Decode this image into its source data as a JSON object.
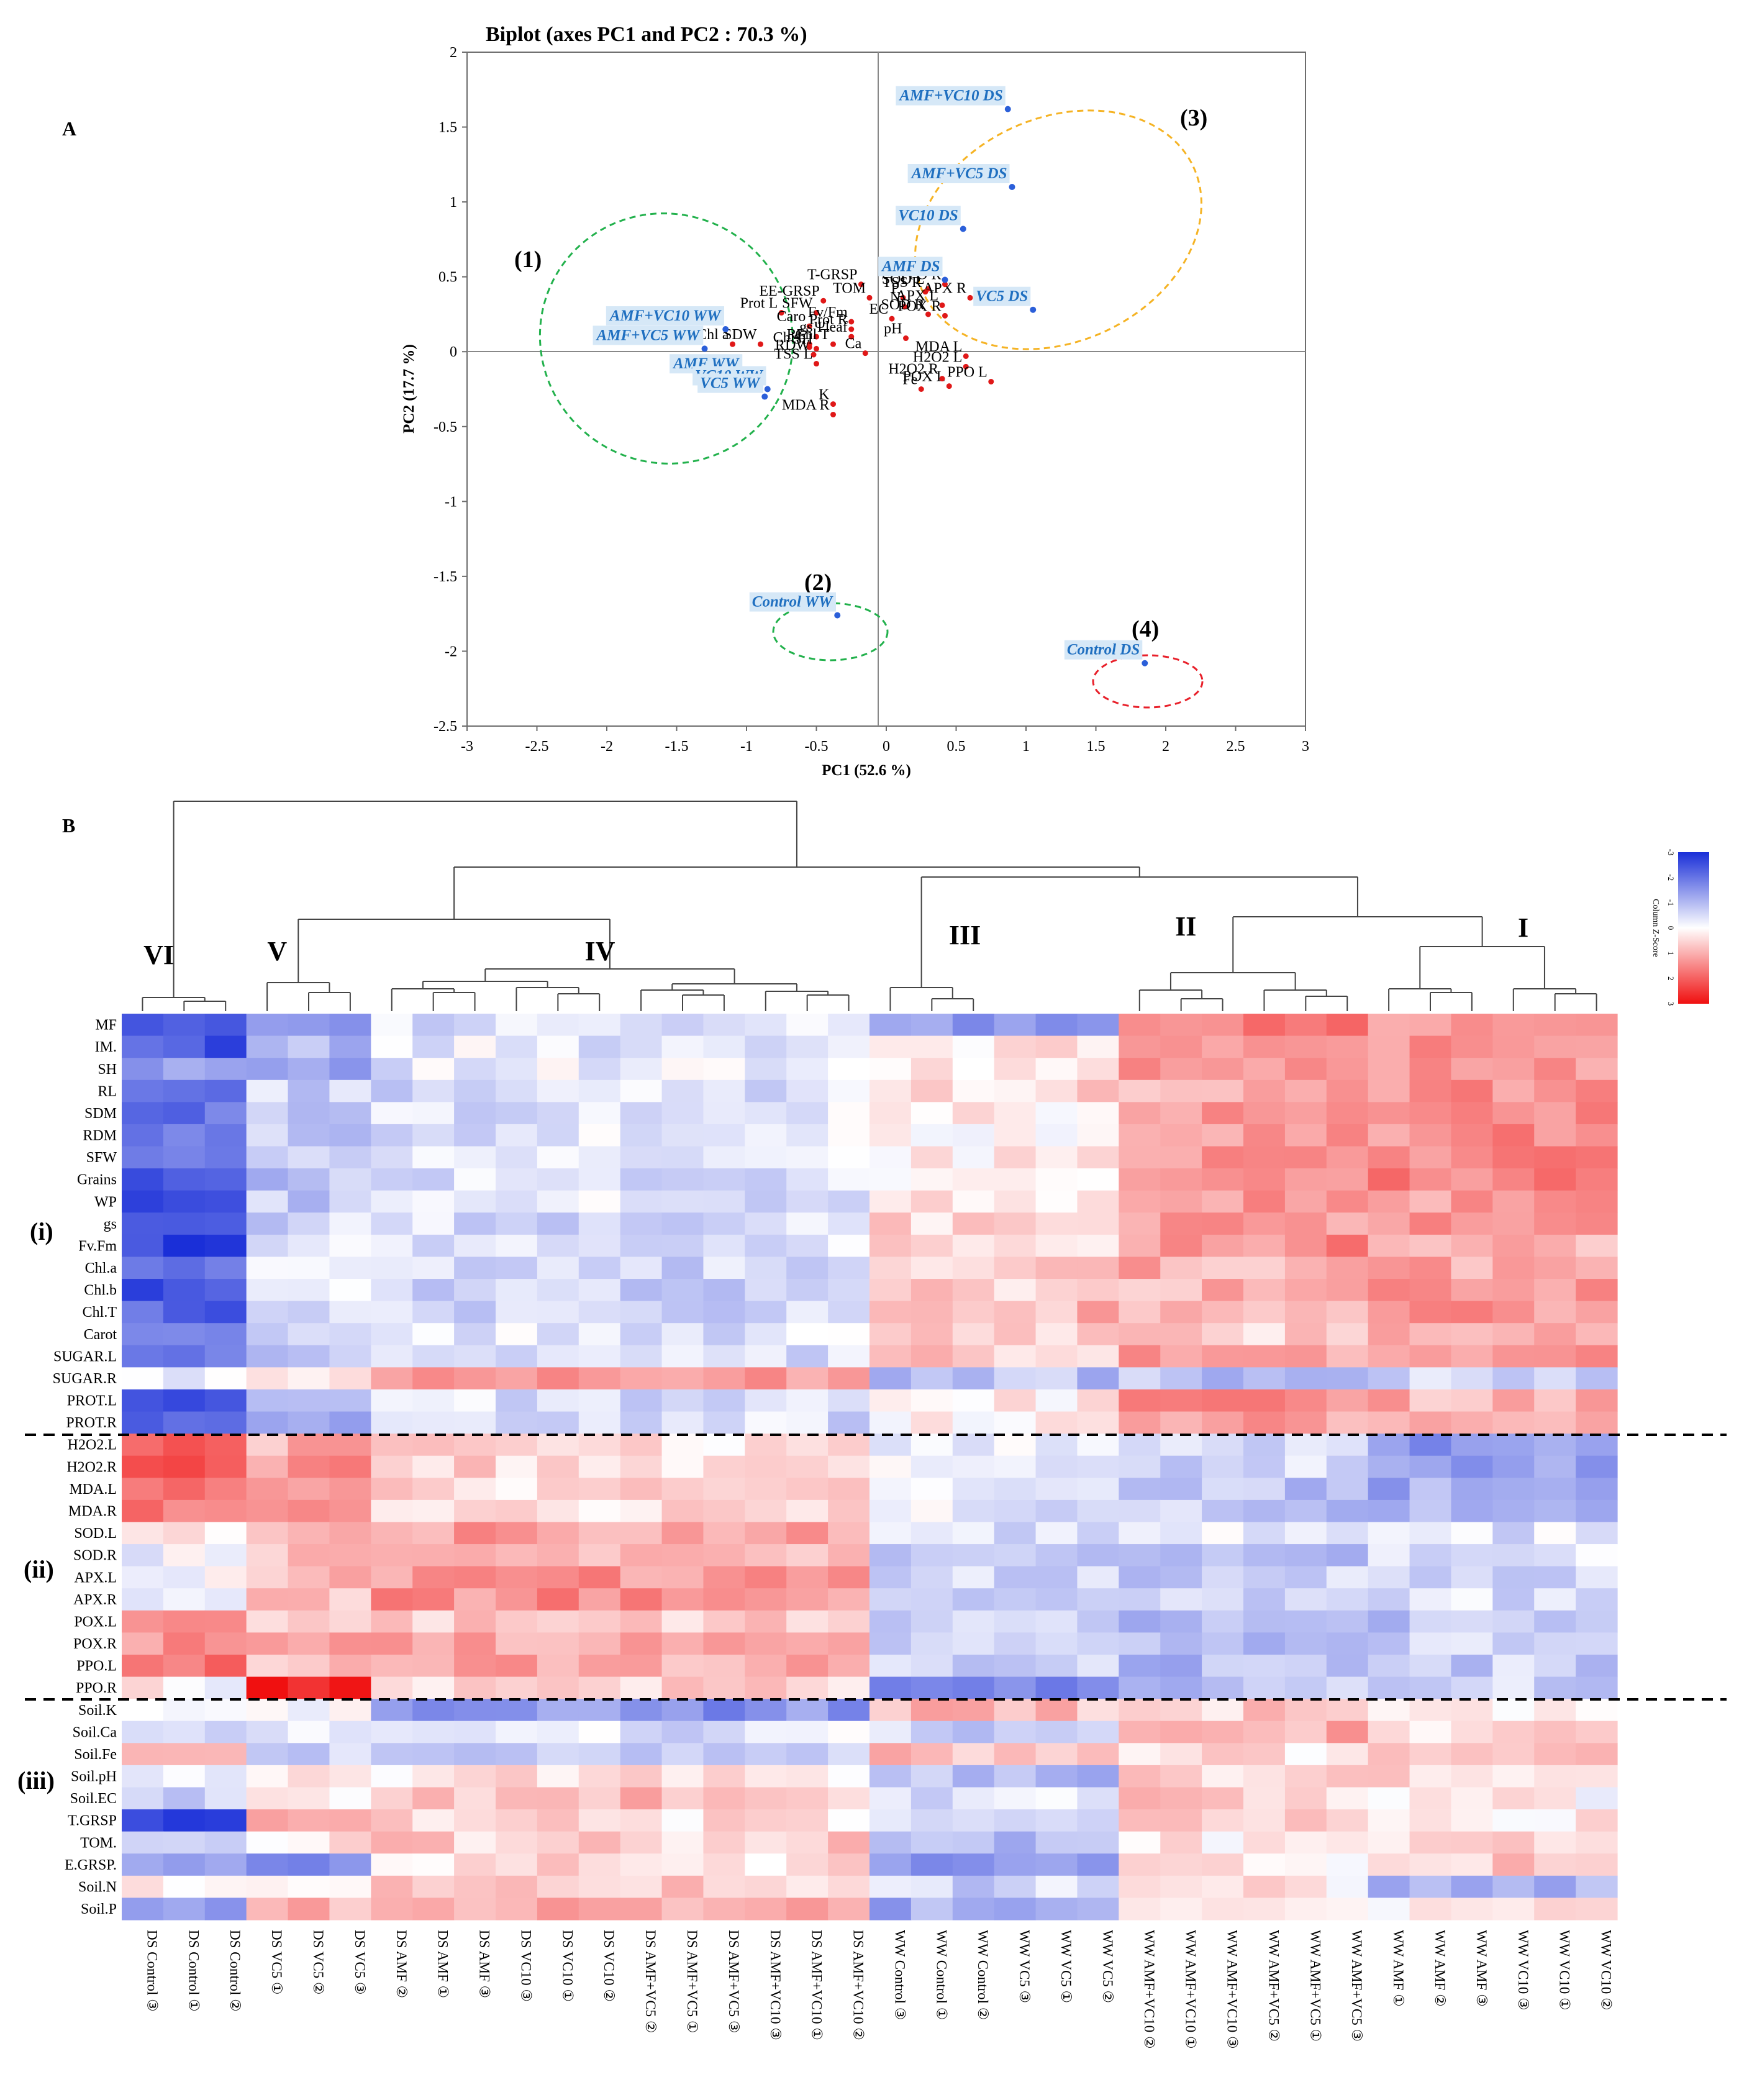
{
  "figure": {
    "panel_a_letter": "A",
    "panel_b_letter": "B",
    "colorbar_title": "Column Z-Score",
    "colorbar_ticks": [
      "-3",
      "-2",
      "-1",
      "0",
      "1",
      "2",
      "3"
    ],
    "colors": {
      "low": "#1a2fd8",
      "mid": "#ffffff",
      "high": "#f01010",
      "variable_point": "#e01818",
      "treatment_point": "#2b5fd9",
      "treatment_label": "#1f6fc0",
      "treatment_label_bg": "#d6e8f7",
      "circle_green": "#22b14c",
      "circle_orange": "#f5b324",
      "circle_red": "#e8202a"
    }
  },
  "chart_data": [
    {
      "type": "scatter",
      "title": "Biplot (axes PC1 and PC2 : 70.3 %)",
      "xlabel": "PC1 (52.6 %)",
      "ylabel": "PC2 (17.7 %)",
      "xlim": [
        -3,
        3
      ],
      "ylim": [
        -2.5,
        2
      ],
      "xticks": [
        "-3",
        "-2.5",
        "-2",
        "-1.5",
        "-1",
        "-0.5",
        "0",
        "0.5",
        "1",
        "1.5",
        "2",
        "2.5",
        "3"
      ],
      "yticks": [
        "2",
        "1.5",
        "1",
        "0.5",
        "0",
        "-0.5",
        "-1",
        "-1.5",
        "-2",
        "-2.5"
      ],
      "variables": [
        {
          "label": "T-GRSP",
          "x": -0.18,
          "y": 0.45
        },
        {
          "label": "EE-GRSP",
          "x": -0.45,
          "y": 0.34
        },
        {
          "label": "SFW",
          "x": -0.5,
          "y": 0.26
        },
        {
          "label": "TOM",
          "x": -0.12,
          "y": 0.36
        },
        {
          "label": "Fv/Fm",
          "x": -0.25,
          "y": 0.2
        },
        {
          "label": "P",
          "x": 0.12,
          "y": 0.36
        },
        {
          "label": "N",
          "x": 0.13,
          "y": 0.3
        },
        {
          "label": "SOD L",
          "x": 0.3,
          "y": 0.42
        },
        {
          "label": "APX R",
          "x": 0.6,
          "y": 0.36
        },
        {
          "label": "TSS R",
          "x": 0.28,
          "y": 0.4
        },
        {
          "label": "PPO R",
          "x": 0.42,
          "y": 0.45
        },
        {
          "label": "Prot L",
          "x": -0.75,
          "y": 0.26
        },
        {
          "label": "Caro",
          "x": -0.55,
          "y": 0.17
        },
        {
          "label": "gs",
          "x": -0.5,
          "y": 0.1
        },
        {
          "label": "Prot R",
          "x": -0.25,
          "y": 0.15
        },
        {
          "label": "EC",
          "x": 0.04,
          "y": 0.22
        },
        {
          "label": "APX L",
          "x": 0.4,
          "y": 0.31
        },
        {
          "label": "SDW",
          "x": -0.9,
          "y": 0.05
        },
        {
          "label": "RL",
          "x": -0.55,
          "y": 0.05
        },
        {
          "label": "Chl T",
          "x": -0.38,
          "y": 0.05
        },
        {
          "label": "Ψleaf",
          "x": -0.25,
          "y": 0.1
        },
        {
          "label": "SOD R",
          "x": 0.3,
          "y": 0.25
        },
        {
          "label": "POX R",
          "x": 0.42,
          "y": 0.24
        },
        {
          "label": "Chl a",
          "x": -1.1,
          "y": 0.05
        },
        {
          "label": "Chl b",
          "x": -0.55,
          "y": 0.03
        },
        {
          "label": "SH",
          "x": -0.5,
          "y": 0.02
        },
        {
          "label": "pH",
          "x": 0.14,
          "y": 0.09
        },
        {
          "label": "MDA L",
          "x": 0.57,
          "y": -0.03
        },
        {
          "label": "RDW",
          "x": -0.52,
          "y": -0.02
        },
        {
          "label": "Ca",
          "x": -0.15,
          "y": -0.01
        },
        {
          "label": "H2O2 L",
          "x": 0.57,
          "y": -0.1
        },
        {
          "label": "PPO L",
          "x": 0.75,
          "y": -0.2
        },
        {
          "label": "TSS L",
          "x": -0.5,
          "y": -0.08
        },
        {
          "label": "POX L",
          "x": 0.45,
          "y": -0.23
        },
        {
          "label": "K",
          "x": -0.38,
          "y": -0.35
        },
        {
          "label": "Fe",
          "x": 0.25,
          "y": -0.25
        },
        {
          "label": "H2O2 R",
          "x": 0.4,
          "y": -0.18
        },
        {
          "label": "MDA R",
          "x": -0.38,
          "y": -0.42
        }
      ],
      "treatments": [
        {
          "label": "AMF+VC10 DS",
          "x": 0.87,
          "y": 1.62,
          "group": 3
        },
        {
          "label": "AMF+VC5 DS",
          "x": 0.9,
          "y": 1.1,
          "group": 3
        },
        {
          "label": "VC10 DS",
          "x": 0.55,
          "y": 0.82,
          "group": 3
        },
        {
          "label": "AMF DS",
          "x": 0.42,
          "y": 0.48,
          "group": 3
        },
        {
          "label": "VC5 DS",
          "x": 1.05,
          "y": 0.28,
          "group": 3
        },
        {
          "label": "AMF+VC10 WW",
          "x": -1.15,
          "y": 0.15,
          "group": 1
        },
        {
          "label": "AMF+VC5 WW",
          "x": -1.3,
          "y": 0.02,
          "group": 1
        },
        {
          "label": "AMF WW",
          "x": -1.02,
          "y": -0.17,
          "group": 1
        },
        {
          "label": "VC10 WW",
          "x": -0.85,
          "y": -0.25,
          "group": 1
        },
        {
          "label": "VC5 WW",
          "x": -0.87,
          "y": -0.3,
          "group": 1
        },
        {
          "label": "Control WW",
          "x": -0.35,
          "y": -1.76,
          "group": 2
        },
        {
          "label": "Control DS",
          "x": 1.85,
          "y": -2.08,
          "group": 4
        }
      ],
      "groups": [
        "(1)",
        "(2)",
        "(3)",
        "(4)"
      ]
    },
    {
      "type": "heatmap",
      "columns": [
        "DS Control ③",
        "DS Control ①",
        "DS Control ②",
        "DS VC5 ①",
        "DS VC5 ②",
        "DS VC5 ③",
        "DS AMF ②",
        "DS AMF ①",
        "DS AMF ③",
        "DS VC10 ③",
        "DS VC10 ①",
        "DS VC10 ②",
        "DS AMF+VC5 ②",
        "DS AMF+VC5 ①",
        "DS AMF+VC5 ③",
        "DS AMF+VC10 ③",
        "DS AMF+VC10 ①",
        "DS AMF+VC10 ②",
        "WW Control ③",
        "WW Control ①",
        "WW Control ②",
        "WW VC5 ③",
        "WW VC5 ①",
        "WW VC5 ②",
        "WW AMF+VC10 ②",
        "WW AMF+VC10 ①",
        "WW AMF+VC10 ③",
        "WW AMF+VC5 ②",
        "WW AMF+VC5 ①",
        "WW AMF+VC5 ③",
        "WW AMF ①",
        "WW AMF ②",
        "WW AMF ③",
        "WW VC10 ③",
        "WW VC10 ①",
        "WW VC10 ②"
      ],
      "rows": [
        "MF",
        "IM.",
        "SH",
        "RL",
        "SDM",
        "RDM",
        "SFW",
        "Grains",
        "WP",
        "gs",
        "Fv.Fm",
        "Chl.a",
        "Chl.b",
        "Chl.T",
        "Carot",
        "SUGAR.L",
        "SUGAR.R",
        "PROT.L",
        "PROT.R",
        "H2O2.L",
        "H2O2.R",
        "MDA.L",
        "MDA.R",
        "SOD.L",
        "SOD.R",
        "APX.L",
        "APX.R",
        "POX.L",
        "POX.R",
        "PPO.L",
        "PPO.R",
        "Soil.K",
        "Soil.Ca",
        "Soil.Fe",
        "Soil.pH",
        "Soil.EC",
        "T.GRSP",
        "TOM.",
        "E.GRSP.",
        "Soil.N",
        "Soil.P"
      ],
      "row_blocks": [
        {
          "label": "(i)",
          "rows": [
            0,
            18
          ]
        },
        {
          "label": "(ii)",
          "rows": [
            19,
            30
          ]
        },
        {
          "label": "(iii)",
          "rows": [
            31,
            40
          ]
        }
      ],
      "column_clusters": [
        "VI",
        "V",
        "IV",
        "III",
        "II",
        "I"
      ],
      "zscore_range": [
        -3,
        3
      ],
      "row_zscore_by_cluster": [
        [
          -2.0,
          -1.2,
          -0.5,
          -1.5,
          1.5,
          1.2
        ],
        [
          -2.4,
          -1.0,
          -0.3,
          0.3,
          1.3,
          1.2
        ],
        [
          -1.2,
          -1.2,
          -0.3,
          0.2,
          1.2,
          1.4
        ],
        [
          -2.0,
          -0.6,
          -0.5,
          0.5,
          1.0,
          1.3
        ],
        [
          -2.1,
          -0.7,
          -0.4,
          0.3,
          1.2,
          1.4
        ],
        [
          -2.0,
          -0.8,
          -0.4,
          0.2,
          1.3,
          1.4
        ],
        [
          -2.0,
          -0.9,
          -0.3,
          0.2,
          1.4,
          1.6
        ],
        [
          -2.3,
          -0.9,
          -0.4,
          0.3,
          1.5,
          1.5
        ],
        [
          -2.6,
          -0.7,
          -0.4,
          0.3,
          1.3,
          1.2
        ],
        [
          -2.4,
          -0.6,
          -0.5,
          0.5,
          1.3,
          1.2
        ],
        [
          -2.8,
          -0.4,
          -0.4,
          0.6,
          1.4,
          1.0
        ],
        [
          -2.2,
          -0.3,
          -0.6,
          0.6,
          1.0,
          1.1
        ],
        [
          -2.5,
          -0.4,
          -0.6,
          0.6,
          0.9,
          1.3
        ],
        [
          -2.3,
          -0.3,
          -0.6,
          0.9,
          0.8,
          1.3
        ],
        [
          -2.0,
          -0.4,
          -0.4,
          0.7,
          0.6,
          1.2
        ],
        [
          -1.9,
          -0.8,
          -0.6,
          0.6,
          1.2,
          1.3
        ],
        [
          -0.4,
          0.4,
          1.3,
          -0.9,
          -0.9,
          -0.7
        ],
        [
          -2.4,
          -0.9,
          -0.5,
          0.3,
          1.3,
          1.0
        ],
        [
          -2.5,
          -1.0,
          -0.5,
          0.2,
          1.1,
          0.8
        ],
        [
          2.0,
          1.0,
          0.4,
          -0.2,
          -0.4,
          -1.5
        ],
        [
          2.0,
          1.3,
          0.5,
          -0.3,
          -0.6,
          -1.4
        ],
        [
          1.6,
          1.2,
          0.5,
          -0.4,
          -0.8,
          -1.2
        ],
        [
          1.8,
          1.1,
          0.5,
          -0.3,
          -0.8,
          -1.1
        ],
        [
          0.4,
          1.0,
          1.2,
          -0.6,
          -0.4,
          -0.4
        ],
        [
          -0.2,
          0.8,
          0.9,
          -0.8,
          -1.1,
          -0.4
        ],
        [
          -0.1,
          0.9,
          1.3,
          -0.6,
          -0.7,
          -0.7
        ],
        [
          -0.4,
          0.6,
          1.4,
          -0.9,
          -0.6,
          -0.5
        ],
        [
          1.8,
          0.8,
          0.6,
          -0.7,
          -1.0,
          -0.8
        ],
        [
          1.3,
          1.0,
          1.1,
          -0.7,
          -0.9,
          -0.7
        ],
        [
          1.8,
          0.6,
          1.1,
          -0.7,
          -1.0,
          -0.7
        ],
        [
          0.1,
          2.8,
          0.6,
          -1.9,
          -0.8,
          -0.6
        ],
        [
          -0.2,
          -0.2,
          -1.5,
          0.8,
          0.6,
          0.2
        ],
        [
          -0.3,
          -0.5,
          -0.4,
          -0.6,
          1.0,
          0.4
        ],
        [
          1.0,
          -0.5,
          -0.8,
          0.8,
          0.4,
          0.6
        ],
        [
          -0.1,
          0.2,
          0.3,
          -1.0,
          0.6,
          0.6
        ],
        [
          -0.6,
          0.2,
          0.8,
          -0.4,
          0.6,
          0.1
        ],
        [
          -3.0,
          0.8,
          0.4,
          -0.2,
          0.5,
          0.3
        ],
        [
          -1.0,
          0.3,
          0.6,
          -1.0,
          0.2,
          0.5
        ],
        [
          -1.2,
          -1.9,
          0.4,
          -1.5,
          0.3,
          0.7
        ],
        [
          0.2,
          0.3,
          0.6,
          -0.6,
          0.3,
          -1.2
        ],
        [
          -1.5,
          1.0,
          1.2,
          -1.2,
          0.3,
          0.3
        ]
      ]
    }
  ]
}
